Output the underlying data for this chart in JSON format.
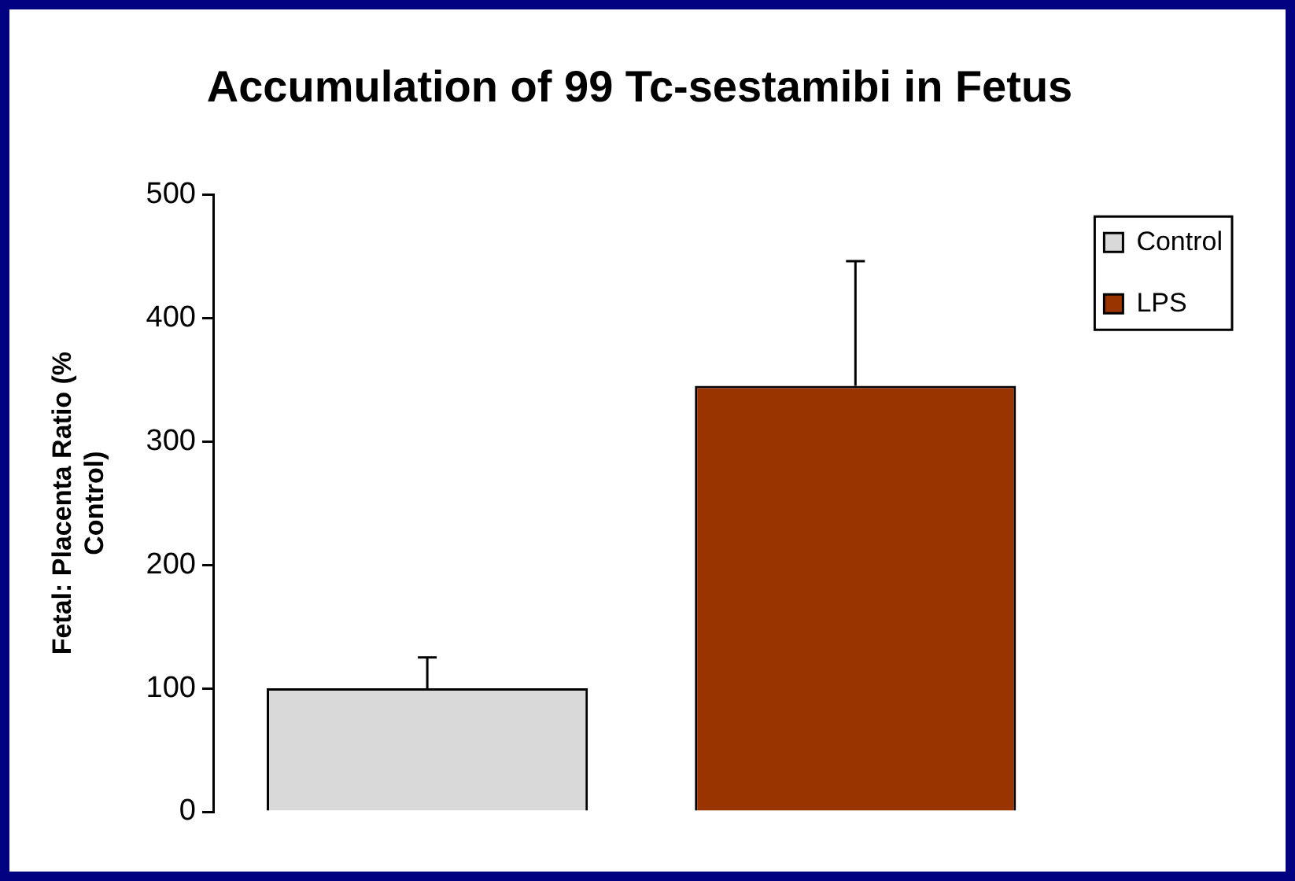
{
  "chart_data": {
    "type": "bar",
    "title": "Accumulation of 99 Tc-sestamibi in Fetus",
    "ylabel": "Fetal: Placenta Ratio (% Control)",
    "categories": [
      null
    ],
    "series": [
      {
        "name": "Control",
        "color": "#d9d9d9",
        "values": [
          100
        ],
        "errors": [
          [
            100,
            125
          ]
        ]
      },
      {
        "name": "LPS",
        "color": "#993300",
        "values": [
          345
        ],
        "errors": [
          [
            345,
            446
          ]
        ]
      }
    ],
    "ylim": [
      0,
      500
    ],
    "yticks": [
      0,
      100,
      200,
      300,
      400,
      500
    ],
    "grid": false,
    "legend": "top right"
  }
}
